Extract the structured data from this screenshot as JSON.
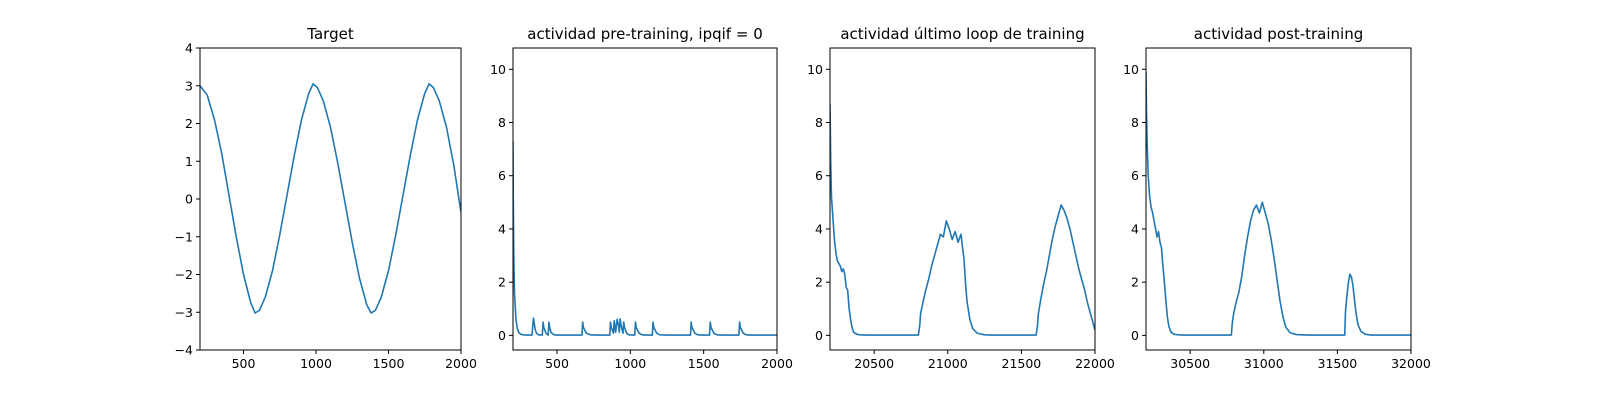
{
  "chart_data": [
    {
      "type": "line",
      "title": "Target",
      "xlim": [
        200,
        2000
      ],
      "ylim": [
        -4,
        4
      ],
      "xticks": [
        500,
        1000,
        1500,
        2000
      ],
      "xtick_labels": [
        "500",
        "1000",
        "1500",
        "2000"
      ],
      "yticks": [
        -4,
        -3,
        -2,
        -1,
        0,
        1,
        2,
        3,
        4
      ],
      "ytick_labels": [
        "−4",
        "−3",
        "−2",
        "−1",
        "0",
        "1",
        "2",
        "3",
        "4"
      ],
      "series": [
        {
          "color": "#1f77b4",
          "x": [
            200,
            250,
            300,
            350,
            400,
            450,
            500,
            550,
            580,
            610,
            650,
            700,
            750,
            800,
            850,
            900,
            950,
            980,
            1010,
            1050,
            1100,
            1150,
            1200,
            1250,
            1300,
            1350,
            1380,
            1410,
            1450,
            1500,
            1550,
            1600,
            1650,
            1700,
            1750,
            1780,
            1810,
            1850,
            1900,
            1950,
            2000
          ],
          "y": [
            3.0,
            2.75,
            2.1,
            1.2,
            0.1,
            -1.0,
            -2.0,
            -2.75,
            -3.02,
            -2.95,
            -2.6,
            -1.9,
            -0.95,
            0.1,
            1.15,
            2.1,
            2.8,
            3.05,
            2.95,
            2.6,
            1.9,
            0.95,
            -0.1,
            -1.15,
            -2.1,
            -2.8,
            -3.02,
            -2.95,
            -2.6,
            -1.9,
            -0.95,
            0.1,
            1.15,
            2.1,
            2.8,
            3.05,
            2.95,
            2.6,
            1.9,
            0.9,
            -0.35
          ]
        }
      ]
    },
    {
      "type": "line",
      "title": "actividad pre-training, ipqif = 0",
      "xlim": [
        200,
        2000
      ],
      "ylim": [
        -0.55,
        10.8
      ],
      "xticks": [
        500,
        1000,
        1500,
        2000
      ],
      "xtick_labels": [
        "500",
        "1000",
        "1500",
        "2000"
      ],
      "yticks": [
        0,
        2,
        4,
        6,
        8,
        10
      ],
      "ytick_labels": [
        "0",
        "2",
        "4",
        "6",
        "8",
        "10"
      ],
      "series": [
        {
          "color": "#1f77b4",
          "x": [
            200,
            202,
            205,
            210,
            220,
            230,
            240,
            255,
            270,
            290,
            310,
            330,
            335,
            340,
            350,
            360,
            375,
            390,
            400,
            405,
            410,
            425,
            440,
            445,
            450,
            460,
            480,
            500,
            520,
            540,
            560,
            600,
            640,
            670,
            675,
            680,
            700,
            730,
            760,
            800,
            840,
            860,
            865,
            870,
            885,
            890,
            895,
            900,
            910,
            920,
            925,
            930,
            940,
            950,
            955,
            960,
            975,
            990,
            1030,
            1035,
            1040,
            1060,
            1080,
            1100,
            1150,
            1155,
            1160,
            1180,
            1200,
            1250,
            1300,
            1350,
            1400,
            1410,
            1415,
            1420,
            1440,
            1460,
            1480,
            1500,
            1530,
            1540,
            1545,
            1550,
            1570,
            1590,
            1620,
            1660,
            1700,
            1730,
            1740,
            1745,
            1750,
            1770,
            1790,
            1820,
            1860,
            1900,
            1950,
            2000
          ],
          "y": [
            7.3,
            5.0,
            3.2,
            1.6,
            0.6,
            0.25,
            0.1,
            0.04,
            0.02,
            0.01,
            0.01,
            0.01,
            0.4,
            0.65,
            0.25,
            0.08,
            0.02,
            0.01,
            0.01,
            0.5,
            0.3,
            0.08,
            0.01,
            0.5,
            0.3,
            0.1,
            0.02,
            0.01,
            0.01,
            0.01,
            0.01,
            0.01,
            0.01,
            0.01,
            0.5,
            0.3,
            0.08,
            0.02,
            0.01,
            0.01,
            0.01,
            0.01,
            0.5,
            0.3,
            0.08,
            0.55,
            0.35,
            0.12,
            0.6,
            0.35,
            0.12,
            0.62,
            0.3,
            0.08,
            0.5,
            0.3,
            0.08,
            0.02,
            0.01,
            0.5,
            0.3,
            0.08,
            0.02,
            0.01,
            0.01,
            0.5,
            0.3,
            0.08,
            0.02,
            0.01,
            0.01,
            0.01,
            0.01,
            0.01,
            0.5,
            0.3,
            0.08,
            0.02,
            0.01,
            0.01,
            0.01,
            0.01,
            0.5,
            0.3,
            0.08,
            0.02,
            0.01,
            0.01,
            0.01,
            0.01,
            0.01,
            0.5,
            0.3,
            0.08,
            0.02,
            0.01,
            0.01,
            0.01,
            0.01,
            0.01
          ]
        }
      ]
    },
    {
      "type": "line",
      "title": "actividad último loop de training",
      "xlim": [
        20200,
        22000
      ],
      "ylim": [
        -0.55,
        10.8
      ],
      "xticks": [
        20500,
        21000,
        21500,
        22000
      ],
      "xtick_labels": [
        "20500",
        "21000",
        "21500",
        "22000"
      ],
      "yticks": [
        0,
        2,
        4,
        6,
        8,
        10
      ],
      "ytick_labels": [
        "0",
        "2",
        "4",
        "6",
        "8",
        "10"
      ],
      "series": [
        {
          "color": "#1f77b4",
          "x": [
            20200,
            20205,
            20210,
            20220,
            20230,
            20240,
            20250,
            20260,
            20270,
            20280,
            20290,
            20300,
            20310,
            20320,
            20330,
            20340,
            20350,
            20360,
            20380,
            20400,
            20450,
            20500,
            20600,
            20700,
            20800,
            20810,
            20815,
            20830,
            20850,
            20870,
            20890,
            20910,
            20930,
            20950,
            20970,
            20990,
            21010,
            21030,
            21050,
            21070,
            21090,
            21100,
            21110,
            21120,
            21130,
            21150,
            21170,
            21200,
            21250,
            21300,
            21400,
            21500,
            21600,
            21610,
            21615,
            21630,
            21650,
            21670,
            21690,
            21710,
            21730,
            21750,
            21770,
            21790,
            21810,
            21830,
            21850,
            21870,
            21890,
            21910,
            21930,
            21950,
            21970,
            21990,
            22000
          ],
          "y": [
            8.7,
            6.5,
            5.2,
            4.4,
            3.6,
            3.1,
            2.8,
            2.7,
            2.6,
            2.4,
            2.5,
            2.3,
            1.8,
            1.7,
            1.0,
            0.6,
            0.3,
            0.12,
            0.05,
            0.02,
            0.01,
            0.01,
            0.01,
            0.01,
            0.01,
            0.4,
            0.8,
            1.2,
            1.7,
            2.1,
            2.6,
            3.0,
            3.4,
            3.8,
            3.7,
            4.3,
            4.0,
            3.6,
            3.9,
            3.5,
            3.8,
            3.3,
            2.9,
            2.0,
            1.3,
            0.6,
            0.25,
            0.08,
            0.02,
            0.01,
            0.01,
            0.01,
            0.01,
            0.4,
            0.8,
            1.3,
            1.9,
            2.4,
            3.0,
            3.6,
            4.1,
            4.5,
            4.9,
            4.7,
            4.4,
            4.0,
            3.5,
            3.0,
            2.5,
            2.1,
            1.7,
            1.2,
            0.8,
            0.4,
            0.2
          ]
        }
      ]
    },
    {
      "type": "line",
      "title": "actividad post-training",
      "xlim": [
        30200,
        32000
      ],
      "ylim": [
        -0.55,
        10.8
      ],
      "xticks": [
        30500,
        31000,
        31500,
        32000
      ],
      "xtick_labels": [
        "30500",
        "31000",
        "31500",
        "32000"
      ],
      "yticks": [
        0,
        2,
        4,
        6,
        8,
        10
      ],
      "ytick_labels": [
        "0",
        "2",
        "4",
        "6",
        "8",
        "10"
      ],
      "series": [
        {
          "color": "#1f77b4",
          "x": [
            30200,
            30203,
            30208,
            30215,
            30225,
            30235,
            30245,
            30255,
            30265,
            30275,
            30285,
            30295,
            30305,
            30315,
            30325,
            30335,
            30345,
            30355,
            30370,
            30390,
            30420,
            30460,
            30500,
            30600,
            30700,
            30780,
            30785,
            30795,
            30810,
            30830,
            30850,
            30870,
            30890,
            30910,
            30930,
            30950,
            30970,
            30990,
            31010,
            31030,
            31050,
            31070,
            31090,
            31110,
            31130,
            31150,
            31180,
            31220,
            31300,
            31400,
            31500,
            31550,
            31555,
            31565,
            31575,
            31585,
            31595,
            31605,
            31615,
            31625,
            31640,
            31660,
            31690,
            31730,
            31800,
            31900,
            32000
          ],
          "y": [
            9.9,
            8.5,
            7.2,
            6.0,
            5.2,
            4.8,
            4.6,
            4.3,
            4.0,
            3.7,
            3.9,
            3.5,
            3.3,
            2.6,
            2.0,
            1.3,
            0.7,
            0.35,
            0.12,
            0.04,
            0.02,
            0.01,
            0.01,
            0.01,
            0.01,
            0.01,
            0.4,
            0.8,
            1.2,
            1.6,
            2.2,
            3.0,
            3.7,
            4.3,
            4.7,
            4.9,
            4.6,
            5.0,
            4.6,
            4.2,
            3.6,
            2.9,
            2.1,
            1.3,
            0.7,
            0.3,
            0.1,
            0.03,
            0.01,
            0.01,
            0.01,
            0.01,
            0.9,
            1.5,
            2.0,
            2.3,
            2.2,
            1.9,
            1.4,
            0.9,
            0.4,
            0.15,
            0.04,
            0.01,
            0.01,
            0.01,
            0.01
          ]
        }
      ]
    }
  ]
}
